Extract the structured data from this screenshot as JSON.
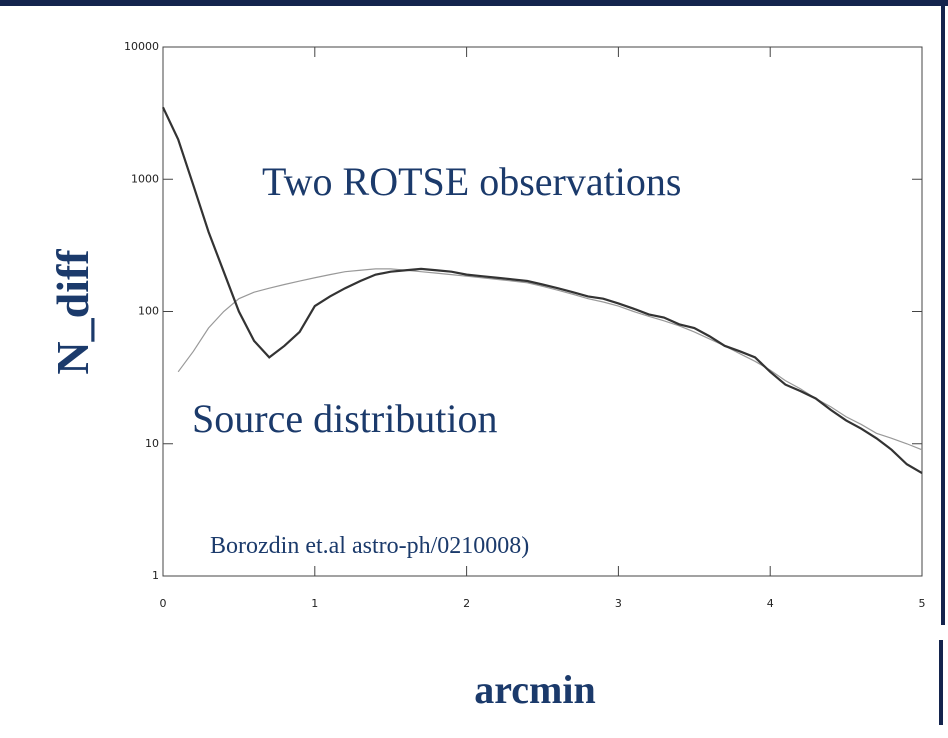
{
  "chart_data": {
    "type": "line",
    "ylabel": "N_diff",
    "xlabel": "arcmin",
    "annotations": [
      "Two ROTSE observations",
      "Source distribution",
      "Borozdin et.al astro-ph/0210008)"
    ],
    "log_y": true,
    "xlim": [
      0,
      5
    ],
    "ylim": [
      1,
      10000
    ],
    "xticks": [
      0,
      1,
      2,
      3,
      4,
      5
    ],
    "yticks": [
      1,
      10,
      100,
      1000,
      10000
    ],
    "x": [
      0,
      0.1,
      0.2,
      0.3,
      0.4,
      0.5,
      0.6,
      0.7,
      0.8,
      0.9,
      1.0,
      1.1,
      1.2,
      1.3,
      1.4,
      1.5,
      1.6,
      1.7,
      1.8,
      1.9,
      2.0,
      2.1,
      2.2,
      2.3,
      2.4,
      2.5,
      2.6,
      2.7,
      2.8,
      2.9,
      3.0,
      3.1,
      3.2,
      3.3,
      3.4,
      3.5,
      3.6,
      3.7,
      3.8,
      3.9,
      4.0,
      4.1,
      4.2,
      4.3,
      4.4,
      4.5,
      4.6,
      4.7,
      4.8,
      4.9,
      5.0
    ],
    "series": [
      {
        "color": "#333333",
        "width": 2.2,
        "values": [
          3500,
          2000,
          900,
          400,
          200,
          100,
          60,
          45,
          55,
          70,
          110,
          130,
          150,
          170,
          190,
          200,
          205,
          210,
          205,
          200,
          190,
          185,
          180,
          175,
          170,
          160,
          150,
          140,
          130,
          125,
          115,
          105,
          95,
          90,
          80,
          75,
          65,
          55,
          50,
          45,
          35,
          28,
          25,
          22,
          18,
          15,
          13,
          11,
          9,
          7,
          6
        ]
      },
      {
        "color": "#999999",
        "width": 1.2,
        "values": [
          null,
          35,
          50,
          75,
          100,
          125,
          140,
          150,
          160,
          170,
          180,
          190,
          200,
          205,
          210,
          210,
          205,
          200,
          195,
          190,
          185,
          180,
          175,
          170,
          165,
          155,
          145,
          135,
          125,
          118,
          110,
          100,
          92,
          85,
          78,
          70,
          62,
          55,
          48,
          42,
          36,
          30,
          26,
          22,
          19,
          16,
          14,
          12,
          11,
          10,
          9
        ]
      }
    ]
  }
}
